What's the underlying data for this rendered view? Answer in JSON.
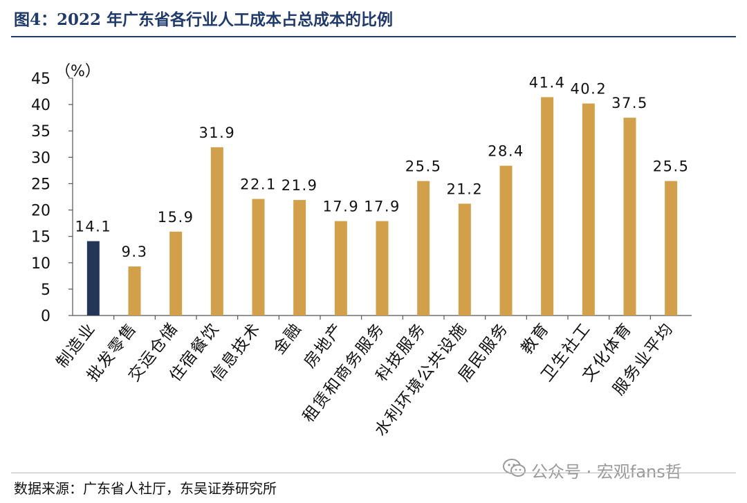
{
  "header": {
    "title": "图4：2022 年广东省各行业人工成本占总成本的比例"
  },
  "footer": {
    "source": "数据来源：广东省人社厅，东吴证券研究所"
  },
  "watermark": {
    "text": "公众号 · 宏观fans哲"
  },
  "chart_data": {
    "type": "bar",
    "title": "",
    "unit_label": "（%）",
    "categories": [
      "制造业",
      "批发零售",
      "交运仓储",
      "住宿餐饮",
      "信息技术",
      "金融",
      "房地产",
      "租赁和商务服务",
      "科技服务",
      "水利环境公共设施",
      "居民服务",
      "教育",
      "卫生社工",
      "文化体育",
      "服务业平均"
    ],
    "values": [
      14.1,
      9.3,
      15.9,
      31.9,
      22.1,
      21.9,
      17.9,
      17.9,
      25.5,
      21.2,
      28.4,
      41.4,
      40.2,
      37.5,
      25.5
    ],
    "value_labels": [
      "14.1",
      "9.3",
      "15.9",
      "31.9",
      "22.1",
      "21.9",
      "17.9",
      "17.9",
      "25.5",
      "21.2",
      "28.4",
      "41.4",
      "40.2",
      "37.5",
      "25.5"
    ],
    "highlight_index": 0,
    "ylim": [
      0,
      45
    ],
    "yticks": [
      0,
      5,
      10,
      15,
      20,
      25,
      30,
      35,
      40,
      45
    ],
    "grid": false,
    "legend": "none",
    "colors": {
      "highlight": "#253557",
      "bar": "#d2a04a",
      "axis": "#555555"
    }
  }
}
